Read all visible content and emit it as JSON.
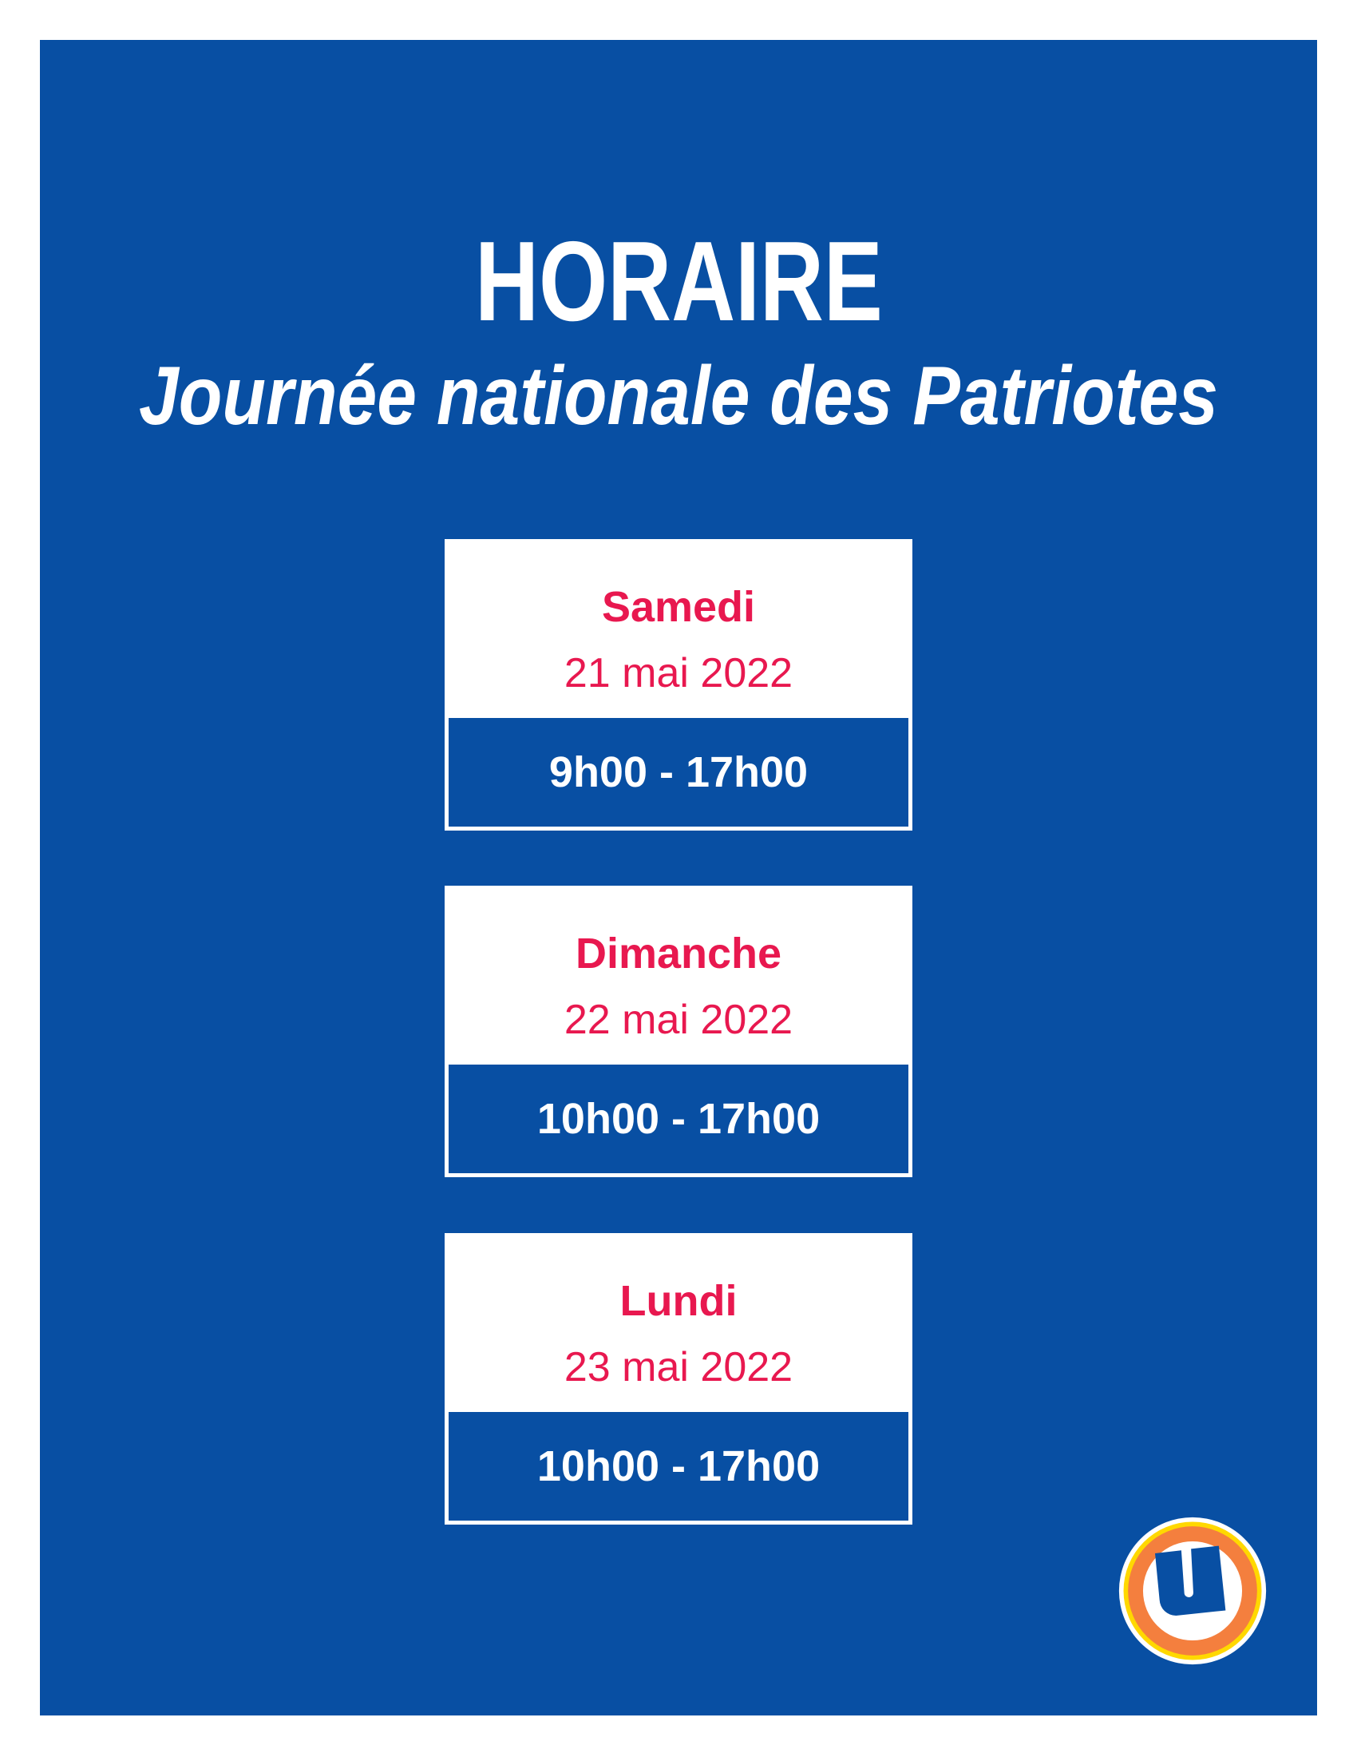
{
  "header": {
    "title": "HORAIRE",
    "subtitle": "Journée nationale des Patriotes"
  },
  "schedule": [
    {
      "day": "Samedi",
      "date": "21 mai 2022",
      "hours": "9h00 - 17h00"
    },
    {
      "day": "Dimanche",
      "date": "22 mai 2022",
      "hours": "10h00 - 17h00"
    },
    {
      "day": "Lundi",
      "date": "23 mai 2022",
      "hours": "10h00 - 17h00"
    }
  ],
  "logo": {
    "name": "u-logo",
    "letter": "U"
  },
  "colors": {
    "background": "#084fa3",
    "accent": "#e8184f",
    "logo_orange": "#f47f3e",
    "logo_yellow": "#ffd800"
  }
}
